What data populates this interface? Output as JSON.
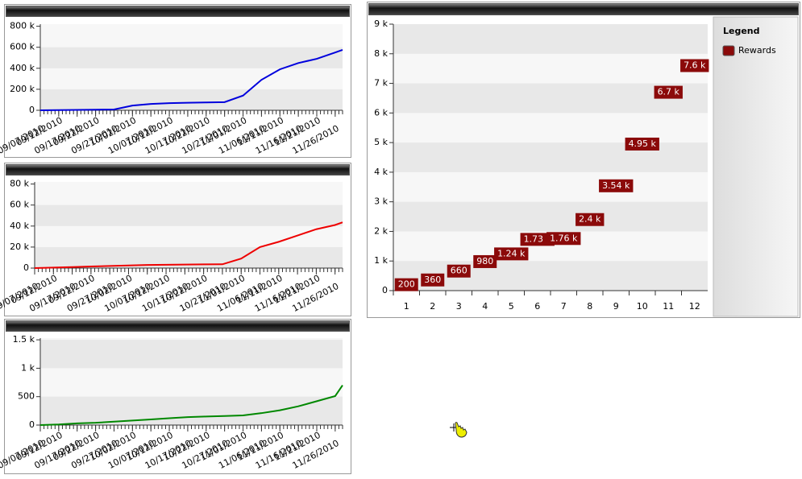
{
  "chart_data": [
    {
      "type": "line",
      "x": [
        "09/07/2010",
        "09/12/2010",
        "09/17/2010",
        "09/22/2010",
        "09/27/2010",
        "10/02/2010",
        "10/07/2010",
        "10/12/2010",
        "10/17/2010",
        "10/22/2010",
        "10/27/2010",
        "11/01/2010",
        "11/06/2010",
        "11/11/2010",
        "11/16/2010",
        "11/21/2010",
        "11/26/2010",
        "11/28/2010"
      ],
      "series": [
        {
          "color": "#0000dd",
          "values": [
            0,
            2000,
            4000,
            6000,
            8000,
            45000,
            60000,
            68000,
            72000,
            75000,
            78000,
            140000,
            290000,
            390000,
            450000,
            490000,
            550000,
            575000
          ]
        }
      ],
      "xlim": [
        "09/07/2010",
        "11/28/2010"
      ],
      "xticks": [
        "09/07/2010",
        "09/12/2010",
        "09/17/2010",
        "09/22/2010",
        "09/27/2010",
        "10/02/2010",
        "10/07/2010",
        "10/12/2010",
        "10/17/2010",
        "10/22/2010",
        "10/27/2010",
        "11/01/2010",
        "11/06/2010",
        "11/11/2010",
        "11/16/2010",
        "11/21/2010",
        "11/26/2010"
      ],
      "ylim": [
        0,
        820000
      ],
      "yticks": [
        0,
        {
          "value": 200000,
          "label": "200 k"
        },
        {
          "value": 400000,
          "label": "400 k"
        },
        {
          "value": 600000,
          "label": "600 k"
        },
        {
          "value": 800000,
          "label": "800 k"
        }
      ],
      "grid": "bands"
    },
    {
      "type": "line",
      "x": [
        "09/07/2010",
        "09/12/2010",
        "09/17/2010",
        "09/22/2010",
        "09/27/2010",
        "10/02/2010",
        "10/07/2010",
        "10/12/2010",
        "10/17/2010",
        "10/22/2010",
        "10/27/2010",
        "11/01/2010",
        "11/06/2010",
        "11/11/2010",
        "11/16/2010",
        "11/21/2010",
        "11/26/2010",
        "11/28/2010"
      ],
      "series": [
        {
          "color": "#ee0000",
          "values": [
            0,
            500,
            1000,
            1500,
            2000,
            2500,
            3000,
            3200,
            3400,
            3500,
            3600,
            9000,
            20000,
            25000,
            31000,
            37000,
            41000,
            43500
          ]
        }
      ],
      "xlim": [
        "09/07/2010",
        "11/28/2010"
      ],
      "xticks": [
        "09/07/2010",
        "09/12/2010",
        "09/17/2010",
        "09/22/2010",
        "09/27/2010",
        "10/02/2010",
        "10/07/2010",
        "10/12/2010",
        "10/17/2010",
        "10/22/2010",
        "10/27/2010",
        "11/01/2010",
        "11/06/2010",
        "11/11/2010",
        "11/16/2010",
        "11/21/2010",
        "11/26/2010"
      ],
      "ylim": [
        0,
        82000
      ],
      "yticks": [
        0,
        {
          "value": 20000,
          "label": "20 k"
        },
        {
          "value": 40000,
          "label": "40 k"
        },
        {
          "value": 60000,
          "label": "60 k"
        },
        {
          "value": 80000,
          "label": "80 k"
        }
      ],
      "grid": "bands"
    },
    {
      "type": "line",
      "x": [
        "09/07/2010",
        "09/12/2010",
        "09/17/2010",
        "09/22/2010",
        "09/27/2010",
        "10/02/2010",
        "10/07/2010",
        "10/12/2010",
        "10/17/2010",
        "10/22/2010",
        "10/27/2010",
        "11/01/2010",
        "11/06/2010",
        "11/11/2010",
        "11/16/2010",
        "11/21/2010",
        "11/26/2010",
        "11/28/2010"
      ],
      "series": [
        {
          "color": "#008800",
          "values": [
            0,
            10,
            30,
            40,
            60,
            80,
            100,
            120,
            140,
            150,
            160,
            170,
            210,
            260,
            330,
            420,
            510,
            700
          ]
        }
      ],
      "xlim": [
        "09/07/2010",
        "11/28/2010"
      ],
      "xticks": [
        "09/07/2010",
        "09/12/2010",
        "09/17/2010",
        "09/22/2010",
        "09/27/2010",
        "10/02/2010",
        "10/07/2010",
        "10/12/2010",
        "10/17/2010",
        "10/22/2010",
        "10/27/2010",
        "11/01/2010",
        "11/06/2010",
        "11/11/2010",
        "11/16/2010",
        "11/21/2010",
        "11/26/2010"
      ],
      "ylim": [
        0,
        1530
      ],
      "yticks": [
        0,
        500,
        {
          "value": 1000,
          "label": "1 k"
        },
        {
          "value": 1500,
          "label": "1.5 k"
        }
      ],
      "grid": "bands"
    },
    {
      "type": "label",
      "legend_title": "Legend",
      "categories": [
        "1",
        "2",
        "3",
        "4",
        "5",
        "6",
        "7",
        "8",
        "9",
        "10",
        "11",
        "12"
      ],
      "series": [
        {
          "name": "Rewards",
          "color": "#8b0a0a",
          "values": [
            200,
            360,
            660,
            980,
            1240,
            1730,
            1760,
            2400,
            3540,
            4950,
            6700,
            7600
          ],
          "value_labels": [
            "200",
            "360",
            "660",
            "980",
            "1.24 k",
            "1.73 k",
            "1.76 k",
            "2.4 k",
            "3.54 k",
            "4.95 k",
            "6.7 k",
            "7.6 k"
          ]
        }
      ],
      "ylim": [
        0,
        9000
      ],
      "yticks": [
        0,
        {
          "value": 1000,
          "label": "1 k"
        },
        {
          "value": 2000,
          "label": "2 k"
        },
        {
          "value": 3000,
          "label": "3 k"
        },
        {
          "value": 4000,
          "label": "4 k"
        },
        {
          "value": 5000,
          "label": "5 k"
        },
        {
          "value": 6000,
          "label": "6 k"
        },
        {
          "value": 7000,
          "label": "7 k"
        },
        {
          "value": 8000,
          "label": "8 k"
        },
        {
          "value": 9000,
          "label": "9 k"
        }
      ],
      "grid": "bands"
    }
  ]
}
